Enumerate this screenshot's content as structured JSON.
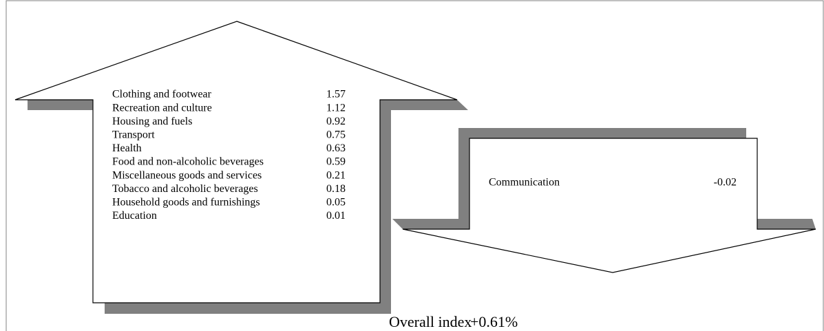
{
  "increases": [
    {
      "label": "Clothing and footwear",
      "value": "1.57"
    },
    {
      "label": "Recreation and culture",
      "value": "1.12"
    },
    {
      "label": "Housing and fuels",
      "value": "0.92"
    },
    {
      "label": "Transport",
      "value": "0.75"
    },
    {
      "label": "Health",
      "value": "0.63"
    },
    {
      "label": "Food and non-alcoholic beverages",
      "value": "0.59"
    },
    {
      "label": "Miscellaneous goods and services",
      "value": "0.21"
    },
    {
      "label": "Tobacco and alcoholic beverages",
      "value": "0.18"
    },
    {
      "label": "Household goods and furnishings",
      "value": "0.05"
    },
    {
      "label": "Education",
      "value": "0.01"
    }
  ],
  "decreases": [
    {
      "label": "Communication",
      "value": "-0.02"
    }
  ],
  "overall": {
    "label": "Overall index",
    "value": "+0.61%"
  }
}
